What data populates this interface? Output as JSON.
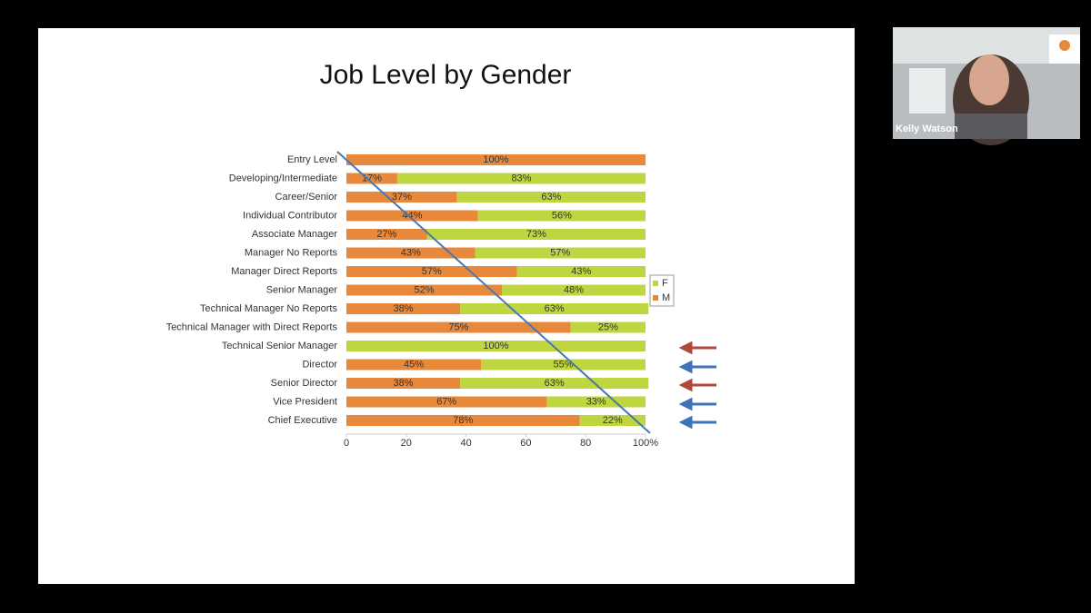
{
  "chart_data": {
    "type": "stacked-bar-horizontal",
    "title": "Job Level by Gender",
    "categories": [
      "Entry Level",
      "Developing/Intermediate",
      "Career/Senior",
      "Individual Contributor",
      "Associate Manager",
      "Manager No Reports",
      "Manager Direct Reports",
      "Senior Manager",
      "Technical Manager No Reports",
      "Technical Manager with Direct Reports",
      "Technical Senior Manager",
      "Director",
      "Senior Director",
      "Vice President",
      "Chief Executive"
    ],
    "series": [
      {
        "name": "M",
        "color": "#e8883a",
        "values": [
          100,
          17,
          37,
          44,
          27,
          43,
          57,
          52,
          38,
          75,
          0,
          45,
          38,
          67,
          78
        ],
        "value_labels": [
          "100%",
          "17%",
          "37%",
          "44%",
          "27%",
          "43%",
          "57%",
          "52%",
          "38%",
          "75%",
          null,
          "45%",
          "38%",
          "67%",
          "78%"
        ]
      },
      {
        "name": "F",
        "color": "#bfd641",
        "values": [
          0,
          83,
          63,
          56,
          73,
          57,
          43,
          48,
          63,
          25,
          100,
          55,
          63,
          33,
          22
        ],
        "value_labels": [
          null,
          "83%",
          "63%",
          "56%",
          "73%",
          "57%",
          "43%",
          "48%",
          "63%",
          "25%",
          "100%",
          "55%",
          "63%",
          "33%",
          "22%"
        ]
      }
    ],
    "xlim": [
      0,
      100
    ],
    "xticks": [
      0,
      20,
      40,
      60,
      80,
      {
        "value": 100,
        "label": "100%"
      }
    ],
    "legend": "right"
  },
  "participant": {
    "name": "Kelly Watson"
  }
}
